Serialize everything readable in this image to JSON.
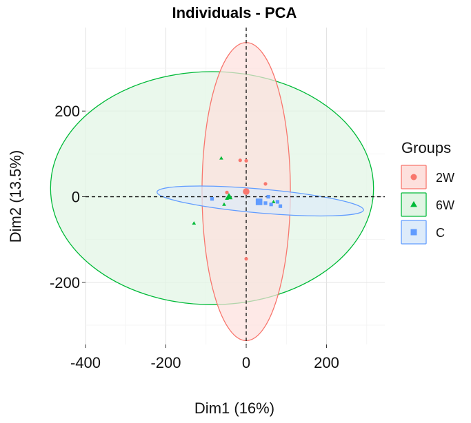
{
  "chart_data": {
    "type": "scatter",
    "title": "Individuals - PCA",
    "xlabel": "Dim1 (16%)",
    "ylabel": "Dim2 (13.5%)",
    "xlim": [
      -400,
      345
    ],
    "ylim": [
      -345,
      395
    ],
    "x_ticks": [
      -400,
      -200,
      0,
      200
    ],
    "y_ticks": [
      -200,
      0,
      200
    ],
    "x_tick_labels": [
      "-400",
      "-200",
      "0",
      "200"
    ],
    "y_tick_labels": [
      "-200",
      "0",
      "200"
    ],
    "grid": true,
    "legend": {
      "title": "Groups",
      "position": "right"
    },
    "series": [
      {
        "name": "2W",
        "marker": "circle",
        "color": "#F8766D",
        "fill": "#FDE0DD",
        "points": [
          [
            -15,
            85
          ],
          [
            0,
            84
          ],
          [
            -48,
            10
          ],
          [
            48,
            30
          ],
          [
            0,
            -145
          ],
          [
            0,
            12
          ]
        ],
        "centroid": [
          0,
          12
        ],
        "ellipse": {
          "cx": 0,
          "cy": 12,
          "rx": 110,
          "ry": 348,
          "angle": 0
        }
      },
      {
        "name": "6W",
        "marker": "triangle",
        "color": "#00BA38",
        "fill": "#E1F5E4",
        "points": [
          [
            -62,
            90
          ],
          [
            -130,
            -62
          ],
          [
            -55,
            -18
          ],
          [
            -48,
            -4
          ],
          [
            68,
            -12
          ],
          [
            -40,
            0
          ]
        ],
        "centroid": [
          -43,
          0
        ],
        "ellipse": {
          "cx": -85,
          "cy": 20,
          "rx": 402,
          "ry": 272,
          "angle": 0
        }
      },
      {
        "name": "C",
        "marker": "square",
        "color": "#619CFF",
        "fill": "#DDEBFA",
        "points": [
          [
            -85,
            -5
          ],
          [
            55,
            0
          ],
          [
            48,
            -15
          ],
          [
            78,
            -12
          ],
          [
            85,
            -22
          ],
          [
            62,
            -18
          ],
          [
            30,
            -10
          ]
        ],
        "centroid": [
          32,
          -12
        ],
        "ellipse": {
          "cx": 35,
          "cy": -10,
          "rx": 258,
          "ry": 28,
          "angle": 5
        }
      }
    ]
  }
}
